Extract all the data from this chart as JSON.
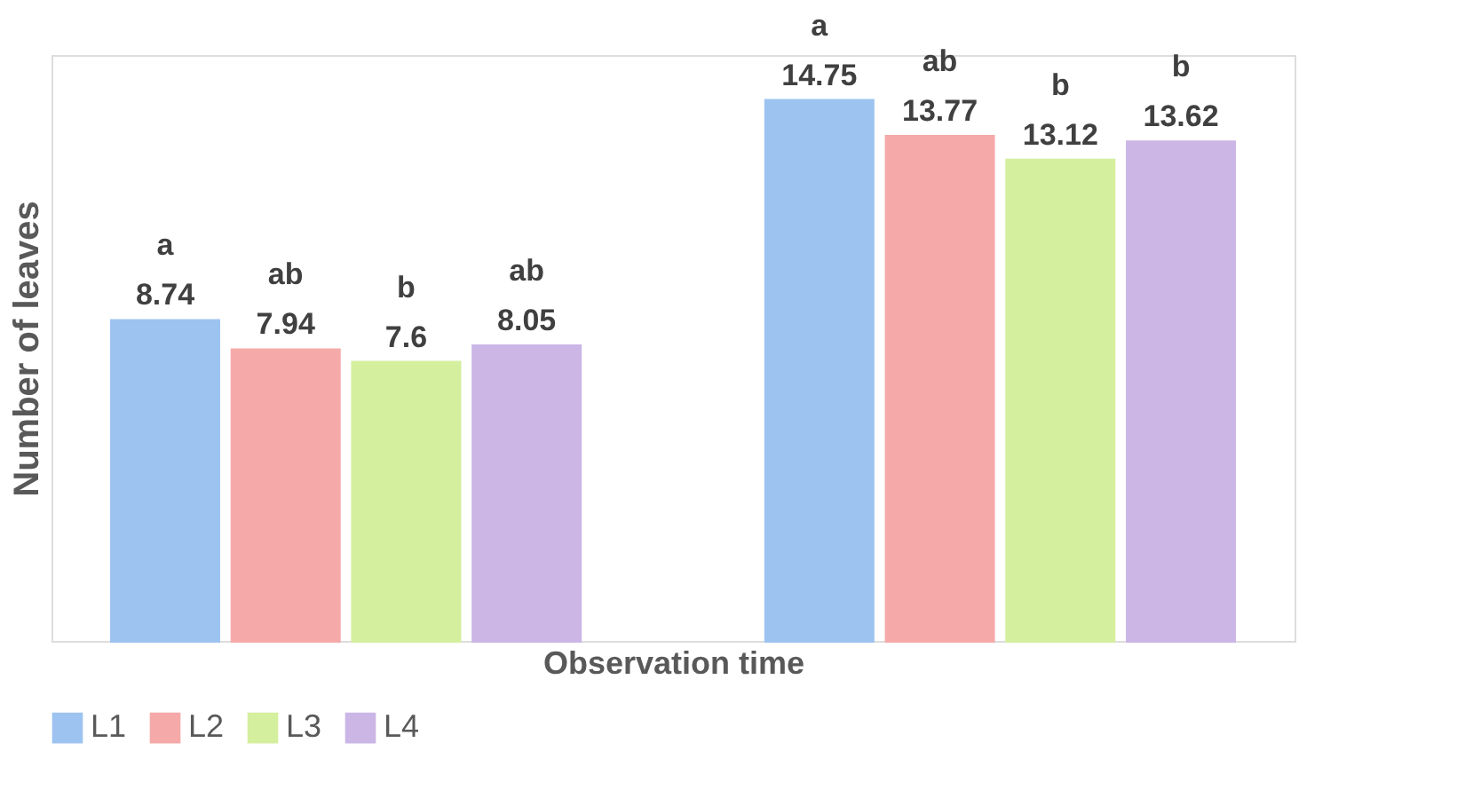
{
  "chart_data": {
    "type": "bar",
    "xlabel": "Observation time",
    "ylabel": "Number of leaves",
    "categories": [
      null,
      null
    ],
    "series": [
      {
        "name": "L1",
        "color": "#9dc3f0",
        "values": [
          8.74,
          14.75
        ],
        "value_labels": [
          "a\n8.74",
          "a\n14.75"
        ]
      },
      {
        "name": "L2",
        "color": "#f5a9a9",
        "values": [
          7.94,
          13.77
        ],
        "value_labels": [
          "ab\n7.94",
          "ab\n13.77"
        ]
      },
      {
        "name": "L3",
        "color": "#d4ef9e",
        "values": [
          7.6,
          13.12
        ],
        "value_labels": [
          "b\n7.6",
          "b\n13.12"
        ]
      },
      {
        "name": "L4",
        "color": "#cbb6e6",
        "values": [
          8.05,
          13.62
        ],
        "value_labels": [
          "ab\n8.05",
          "b\n13.62"
        ]
      }
    ],
    "legend": "bottom",
    "grid": false
  }
}
